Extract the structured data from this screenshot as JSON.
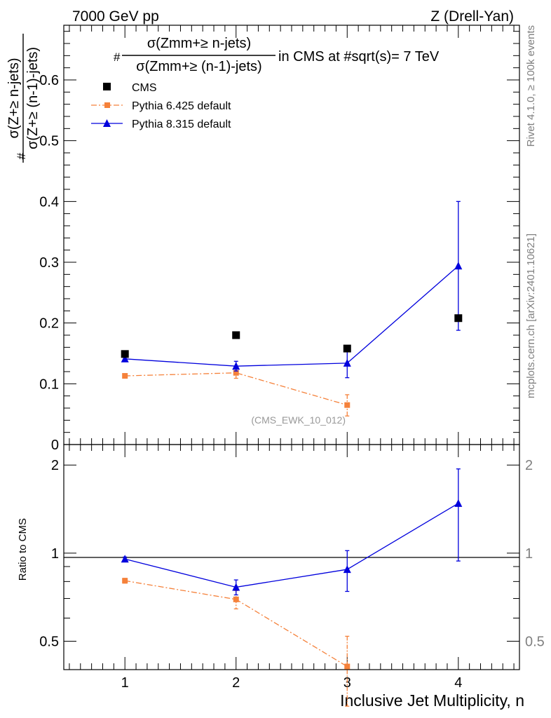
{
  "header": {
    "left": "7000 GeV pp",
    "right": "Z (Drell-Yan)"
  },
  "side_labels": {
    "rivet": "Rivet 4.1.0, ≥ 100k events",
    "mcplots": "mcplots.cern.ch [arXiv:2401.10621]"
  },
  "reference": "(CMS_EWK_10_012)",
  "colors": {
    "cms": "#000000",
    "py6": "#f5813a",
    "py8": "#0000dd",
    "side_text": "#808080"
  },
  "chart_data": [
    {
      "type": "scatter",
      "panel": "main",
      "title": {
        "hash": "#",
        "numerator": "σ(Zmm+≥ n-jets)",
        "denominator": "σ(Zmm+≥ (n-1)-jets)",
        "suffix": "in CMS at #sqrt(s)= 7 TeV"
      },
      "ylabel": {
        "hash": "#",
        "numerator": "σ(Z+≥ n-jets)",
        "denominator": "σ(Z+≥ (n-1)-jets)"
      },
      "xlim": [
        0.45,
        4.55
      ],
      "ylim": [
        0,
        0.69
      ],
      "yticks": [
        "0",
        "0.1",
        "0.2",
        "0.3",
        "0.4",
        "0.5",
        "0.6"
      ],
      "legend_position": "top-left",
      "series": [
        {
          "key": "cms",
          "name": "CMS",
          "marker": "square",
          "line": "none",
          "x": [
            1,
            2,
            3,
            4
          ],
          "y": [
            0.149,
            0.18,
            0.158,
            0.208
          ],
          "yerr_low": [
            0,
            0,
            0,
            0
          ],
          "yerr_high": [
            0,
            0,
            0,
            0
          ]
        },
        {
          "key": "py6",
          "name": "Pythia 6.425 default",
          "marker": "square-small",
          "line": "dashdot",
          "x": [
            1,
            2,
            3
          ],
          "y": [
            0.113,
            0.118,
            0.065
          ],
          "yerr_low": [
            0.003,
            0.009,
            0.018
          ],
          "yerr_high": [
            0.003,
            0.009,
            0.017
          ]
        },
        {
          "key": "py8",
          "name": "Pythia 8.315 default",
          "marker": "triangle",
          "line": "solid",
          "x": [
            1,
            2,
            3,
            4
          ],
          "y": [
            0.141,
            0.129,
            0.134,
            0.294
          ],
          "yerr_low": [
            0.003,
            0.008,
            0.024,
            0.106
          ],
          "yerr_high": [
            0.003,
            0.008,
            0.024,
            0.106
          ]
        }
      ]
    },
    {
      "type": "scatter",
      "panel": "ratio",
      "ylabel": "Ratio to CMS",
      "xlabel": "Inclusive Jet Multiplicity, n",
      "xlim": [
        0.45,
        4.55
      ],
      "ylim": [
        0.4,
        2.35
      ],
      "ylog": true,
      "yticks": [
        "0.5",
        "1",
        "2"
      ],
      "xticks": [
        "1",
        "2",
        "3",
        "4"
      ],
      "reference_line": 1,
      "series": [
        {
          "key": "py6",
          "name": "Pythia 6.425 default",
          "marker": "square-small",
          "line": "dashdot",
          "x": [
            1,
            2,
            3
          ],
          "y": [
            0.805,
            0.695,
            0.41
          ],
          "yerr_low": [
            0.015,
            0.05,
            0.11
          ],
          "yerr_high": [
            0.015,
            0.05,
            0.11
          ]
        },
        {
          "key": "py8",
          "name": "Pythia 8.315 default",
          "marker": "triangle",
          "line": "solid",
          "x": [
            1,
            2,
            3,
            4
          ],
          "y": [
            0.955,
            0.765,
            0.88,
            1.48
          ],
          "yerr_low": [
            0.015,
            0.045,
            0.14,
            0.54
          ],
          "yerr_high": [
            0.015,
            0.045,
            0.14,
            0.46
          ]
        }
      ]
    }
  ]
}
